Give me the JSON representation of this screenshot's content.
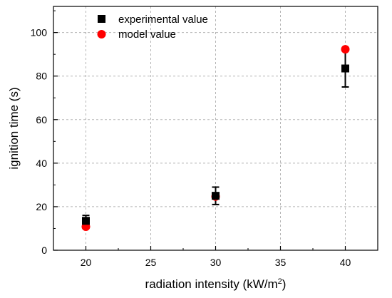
{
  "chart_data": {
    "type": "scatter",
    "title": "",
    "xlabel": "radiation intensity (kW/m",
    "xlabel_sup": "2",
    "xlabel_suffix": ")",
    "ylabel": "ignition time (s)",
    "xlim": [
      17.5,
      42.5
    ],
    "ylim": [
      0,
      112
    ],
    "x_ticks": [
      20,
      25,
      30,
      35,
      40
    ],
    "y_ticks": [
      0,
      20,
      40,
      60,
      80,
      100
    ],
    "x_tick_labels": [
      "20",
      "25",
      "30",
      "35",
      "40"
    ],
    "y_tick_labels": [
      "0",
      "20",
      "40",
      "60",
      "80",
      "100"
    ],
    "grid": true,
    "legend_position": "top-left",
    "series": [
      {
        "name": "experimental value",
        "marker": "square",
        "color": "#000000",
        "x": [
          20,
          30,
          40
        ],
        "y": [
          13.5,
          25,
          83.5
        ],
        "err_low": [
          11,
          21,
          75
        ],
        "err_high": [
          16,
          29,
          92
        ]
      },
      {
        "name": "model value",
        "marker": "circle",
        "color": "#ff0000",
        "x": [
          20,
          30,
          40
        ],
        "y": [
          10.8,
          24.7,
          92.3
        ]
      }
    ]
  }
}
